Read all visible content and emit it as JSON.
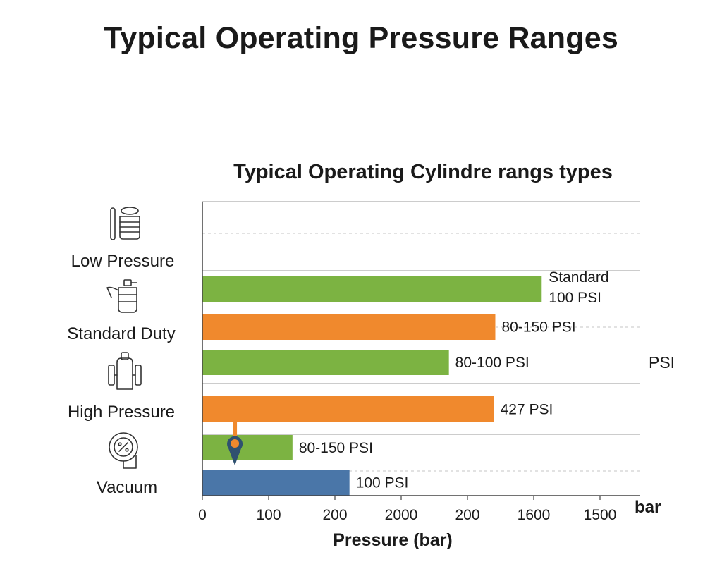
{
  "page": {
    "title": "Typical Operating Pressure Ranges"
  },
  "chart_data": {
    "type": "bar",
    "orientation": "horizontal",
    "title": "Typical Operating Cylindre rangs types",
    "xlabel": "Pressure (bar)",
    "x_unit_label": "bar",
    "right_label": "PSI",
    "x_tick_labels": [
      "0",
      "100",
      "200",
      "2000",
      "200",
      "1600",
      "1500"
    ],
    "x_tick_positions": [
      0,
      100,
      200,
      300,
      400,
      500,
      600
    ],
    "xlim": [
      0,
      670
    ],
    "grid": true,
    "categories": [
      {
        "label": "Low Pressure",
        "icon": "gas-cylinder-icon"
      },
      {
        "label": "Standard Duty",
        "icon": "spray-tank-icon"
      },
      {
        "label": "High Pressure",
        "icon": "high-pressure-cylinder-icon"
      },
      {
        "label": "Vacuum",
        "icon": "vacuum-gauge-icon"
      }
    ],
    "bars": [
      {
        "value": 512,
        "color": "#7cb342",
        "label_lines": [
          "Standard",
          "100 PSI"
        ],
        "category": "Standard Duty"
      },
      {
        "value": 442,
        "color": "#f0892d",
        "label_lines": [
          "80-150 PSI"
        ],
        "category": "Standard Duty"
      },
      {
        "value": 372,
        "color": "#7cb342",
        "label_lines": [
          "80-100 PSI"
        ],
        "category": "High Pressure"
      },
      {
        "value": 440,
        "color": "#f0892d",
        "label_lines": [
          "427 PSI"
        ],
        "category": "High Pressure"
      },
      {
        "value": 136,
        "color": "#7cb342",
        "label_lines": [
          "80-150 PSI"
        ],
        "category": "Vacuum"
      },
      {
        "value": 222,
        "color": "#4a76a8",
        "label_lines": [
          "100 PSI"
        ],
        "category": "Vacuum"
      }
    ],
    "marker": {
      "value": 49,
      "color": "#f0892d",
      "pin_color": "#2f5170"
    }
  },
  "colors": {
    "green": "#7cb342",
    "orange": "#f0892d",
    "blue": "#4a76a8"
  }
}
